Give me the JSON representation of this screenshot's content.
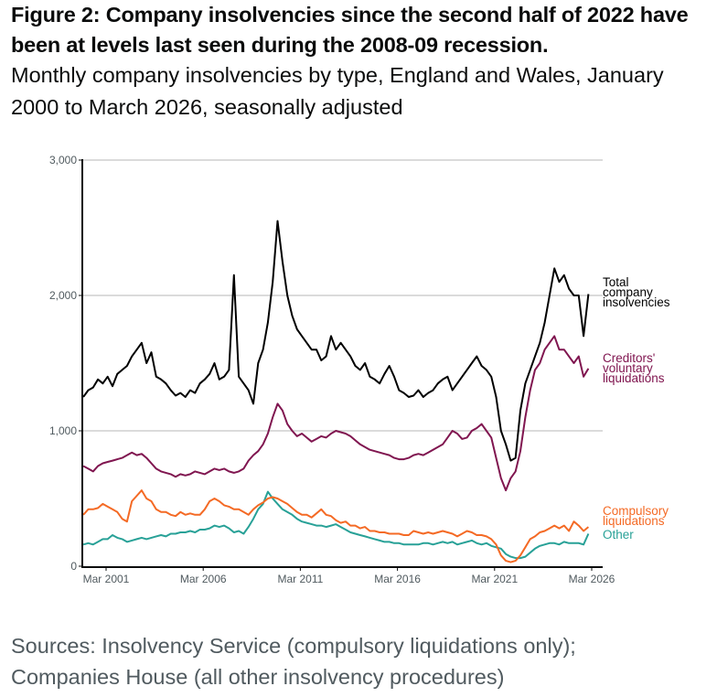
{
  "figure": {
    "title_line1": "Figure 2: Company insolvencies since the second half of 2022 have",
    "title_line2": "been at levels last seen during the 2008-09 recession.",
    "subtitle": "Monthly company insolvencies by type, England and Wales, January 2000 to March 2026, seasonally adjusted",
    "source_line1": "Sources: Insolvency Service (compulsory liquidations only);",
    "source_line2": "Companies House (all other insolvency procedures)"
  },
  "chart_data": {
    "type": "line",
    "title": "Monthly company insolvencies by type, England and Wales, January 2000 to March 2026, seasonally adjusted",
    "xlabel": "",
    "ylabel": "",
    "ylim": [
      0,
      3000
    ],
    "yticks": [
      0,
      1000,
      2000,
      3000
    ],
    "ytick_labels": [
      "0",
      "1,000",
      "2,000",
      "3,000"
    ],
    "xticks": [
      2001.17,
      2006.17,
      2011.17,
      2016.17,
      2021.17,
      2026.17
    ],
    "xtick_labels": [
      "Mar 2001",
      "Mar 2006",
      "Mar 2011",
      "Mar 2016",
      "Mar 2021",
      "Mar 2026"
    ],
    "xlim": [
      2000.0,
      2026.2
    ],
    "grid": "horizontal",
    "legend": "direct labels at right end of lines",
    "x_note": "quarterly sample points (approximate, read from monthly series), year fractions from 2000.0 to 2026.17",
    "x_start": 2000.0,
    "x_step": 0.25,
    "series": [
      {
        "name": "Total company insolvencies",
        "label_lines": [
          "Total",
          "company",
          "insolvencies"
        ],
        "color": "#000000",
        "values": [
          1250,
          1300,
          1320,
          1380,
          1350,
          1400,
          1330,
          1420,
          1450,
          1480,
          1550,
          1600,
          1650,
          1500,
          1580,
          1400,
          1380,
          1350,
          1300,
          1260,
          1280,
          1250,
          1300,
          1280,
          1350,
          1380,
          1420,
          1500,
          1380,
          1400,
          1450,
          2150,
          1400,
          1350,
          1300,
          1200,
          1500,
          1600,
          1800,
          2100,
          2550,
          2250,
          2000,
          1850,
          1750,
          1700,
          1650,
          1600,
          1600,
          1520,
          1550,
          1700,
          1600,
          1650,
          1600,
          1550,
          1480,
          1450,
          1500,
          1400,
          1380,
          1350,
          1420,
          1480,
          1400,
          1300,
          1280,
          1250,
          1260,
          1300,
          1250,
          1280,
          1300,
          1350,
          1380,
          1400,
          1300,
          1350,
          1400,
          1450,
          1500,
          1550,
          1480,
          1450,
          1400,
          1250,
          1000,
          900,
          780,
          800,
          1150,
          1350,
          1450,
          1550,
          1650,
          1800,
          2000,
          2200,
          2100,
          2150,
          2050,
          2000,
          2000,
          1700,
          2010
        ]
      },
      {
        "name": "Creditors' voluntary liquidations",
        "label_lines": [
          "Creditors'",
          "voluntary",
          "liquidations"
        ],
        "color": "#801650",
        "values": [
          740,
          720,
          700,
          740,
          760,
          770,
          780,
          790,
          800,
          820,
          840,
          820,
          830,
          800,
          760,
          720,
          700,
          690,
          680,
          660,
          680,
          670,
          680,
          700,
          690,
          680,
          700,
          720,
          710,
          720,
          700,
          690,
          700,
          720,
          780,
          820,
          850,
          900,
          980,
          1100,
          1200,
          1150,
          1050,
          1000,
          960,
          980,
          950,
          920,
          940,
          960,
          950,
          980,
          1000,
          990,
          980,
          960,
          930,
          900,
          880,
          860,
          850,
          840,
          830,
          820,
          800,
          790,
          790,
          800,
          820,
          830,
          820,
          840,
          860,
          880,
          900,
          950,
          1000,
          980,
          940,
          950,
          1000,
          1020,
          1050,
          1000,
          950,
          800,
          650,
          560,
          650,
          700,
          850,
          1100,
          1300,
          1450,
          1500,
          1600,
          1650,
          1700,
          1600,
          1600,
          1550,
          1500,
          1550,
          1400,
          1460
        ]
      },
      {
        "name": "Compulsory liquidations",
        "label_lines": [
          "Compulsory",
          "liquidations"
        ],
        "color": "#f46a25",
        "values": [
          380,
          420,
          420,
          430,
          460,
          440,
          420,
          400,
          350,
          330,
          480,
          520,
          560,
          500,
          480,
          420,
          400,
          400,
          380,
          370,
          400,
          380,
          390,
          380,
          380,
          420,
          480,
          500,
          480,
          450,
          440,
          420,
          420,
          400,
          380,
          420,
          450,
          470,
          500,
          510,
          500,
          480,
          460,
          430,
          400,
          380,
          380,
          360,
          390,
          420,
          380,
          370,
          340,
          320,
          330,
          300,
          300,
          280,
          290,
          260,
          260,
          250,
          250,
          240,
          240,
          240,
          230,
          230,
          260,
          250,
          240,
          250,
          240,
          250,
          260,
          250,
          240,
          220,
          240,
          260,
          250,
          230,
          230,
          220,
          200,
          160,
          80,
          40,
          30,
          40,
          80,
          140,
          200,
          220,
          250,
          260,
          280,
          300,
          280,
          300,
          260,
          330,
          300,
          260,
          290
        ]
      },
      {
        "name": "Other",
        "label_lines": [
          "Other"
        ],
        "color": "#28a197",
        "values": [
          160,
          170,
          160,
          180,
          200,
          200,
          230,
          210,
          200,
          180,
          190,
          200,
          210,
          200,
          210,
          220,
          230,
          220,
          240,
          240,
          250,
          250,
          260,
          250,
          270,
          270,
          280,
          300,
          290,
          300,
          280,
          250,
          260,
          240,
          290,
          350,
          420,
          460,
          550,
          500,
          460,
          420,
          400,
          380,
          350,
          330,
          320,
          310,
          300,
          300,
          290,
          300,
          310,
          290,
          270,
          250,
          240,
          230,
          220,
          210,
          200,
          190,
          180,
          180,
          170,
          170,
          160,
          160,
          160,
          160,
          170,
          170,
          160,
          170,
          180,
          170,
          180,
          160,
          170,
          180,
          190,
          170,
          160,
          170,
          150,
          140,
          130,
          90,
          70,
          60,
          60,
          70,
          100,
          130,
          150,
          160,
          170,
          170,
          160,
          180,
          170,
          170,
          170,
          160,
          240
        ]
      }
    ]
  }
}
